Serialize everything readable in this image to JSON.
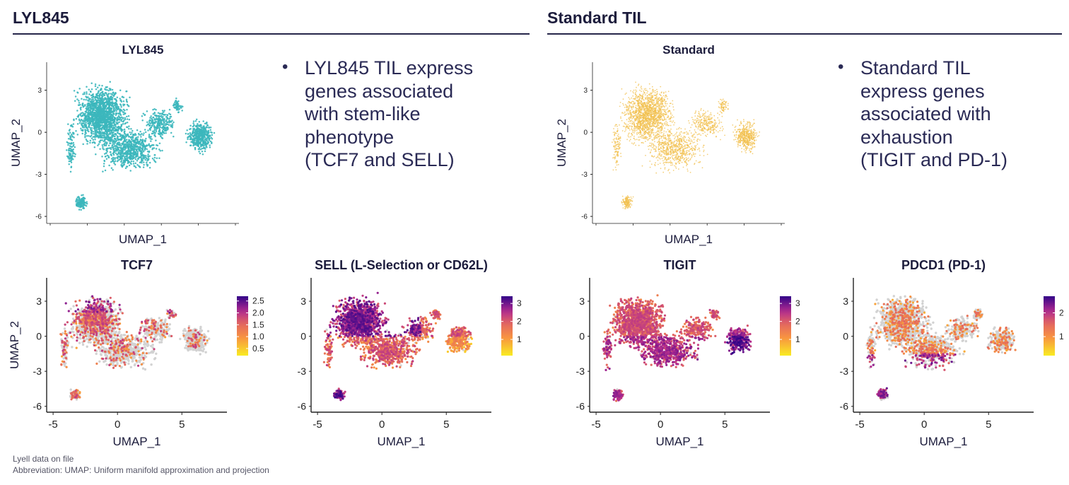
{
  "sections": {
    "left_title": "LYL845",
    "right_title": "Standard TIL"
  },
  "bullets": {
    "left": [
      "LYL845 TIL express",
      "genes associated",
      "with stem-like",
      "phenotype",
      "(TCF7 and SELL)"
    ],
    "right": [
      "Standard TIL",
      "express genes",
      "associated with",
      "exhaustion",
      "(TIGIT and PD-1)"
    ],
    "marker": "•"
  },
  "footnotes": {
    "line1": "Lyell data on file",
    "line2": "Abbreviation: UMAP: Uniform manifold approximation and projection"
  },
  "colors": {
    "teal": "#3cb7bd",
    "gold": "#f1c04f",
    "gray": "#d2d2d2",
    "rule": "#26264a",
    "text": "#1f1f3a"
  },
  "chart_data": [
    {
      "id": "lyl845",
      "type": "scatter",
      "title": "LYL845",
      "xlabel": "UMAP_1",
      "ylabel": "UMAP_2",
      "xlim": [
        -6,
        9
      ],
      "ylim": [
        -6.5,
        5
      ],
      "yticks": [
        3,
        0,
        -3,
        -6
      ],
      "xticks": [],
      "color": "#3cb7bd",
      "mode": "solid"
    },
    {
      "id": "standard",
      "type": "scatter",
      "title": "Standard",
      "xlabel": "UMAP_1",
      "ylabel": "UMAP_2",
      "xlim": [
        -6,
        9
      ],
      "ylim": [
        -6.5,
        5
      ],
      "yticks": [
        3,
        0,
        -3,
        -6
      ],
      "xticks": [],
      "color": "#f1c04f",
      "mode": "sparse"
    },
    {
      "id": "tcf7",
      "type": "scatter",
      "title": "TCF7",
      "xlabel": "UMAP_1",
      "ylabel": "UMAP_2",
      "xlim": [
        -5.5,
        8.5
      ],
      "ylim": [
        -6.5,
        5
      ],
      "yticks": [
        3,
        0,
        -3,
        -6
      ],
      "xticks": [
        -5,
        0,
        5
      ],
      "mode": "expression",
      "pattern": "tcf7",
      "colorbar": {
        "min": 0.2,
        "max": 2.7,
        "ticks": [
          2.5,
          2.0,
          1.5,
          1.0,
          0.5
        ]
      }
    },
    {
      "id": "sell",
      "type": "scatter",
      "title": "SELL (L-Selection or CD62L)",
      "xlabel": "UMAP_1",
      "ylabel": "",
      "xlim": [
        -5.5,
        8.5
      ],
      "ylim": [
        -6.5,
        5
      ],
      "yticks": [
        3,
        0,
        -3,
        -6
      ],
      "xticks": [
        -5,
        0,
        5
      ],
      "mode": "expression",
      "pattern": "sell",
      "colorbar": {
        "min": 0.1,
        "max": 3.4,
        "ticks": [
          3,
          2,
          1
        ]
      }
    },
    {
      "id": "tigit",
      "type": "scatter",
      "title": "TIGIT",
      "xlabel": "UMAP_1",
      "ylabel": "",
      "xlim": [
        -5.5,
        8.5
      ],
      "ylim": [
        -6.5,
        5
      ],
      "yticks": [
        3,
        0,
        -3,
        -6
      ],
      "xticks": [
        -5,
        0,
        5
      ],
      "mode": "expression",
      "pattern": "tigit",
      "colorbar": {
        "min": 0.1,
        "max": 3.4,
        "ticks": [
          3,
          2,
          1
        ]
      }
    },
    {
      "id": "pdcd1",
      "type": "scatter",
      "title": "PDCD1 (PD-1)",
      "xlabel": "UMAP_1",
      "ylabel": "",
      "xlim": [
        -5.5,
        8.5
      ],
      "ylim": [
        -6.5,
        5
      ],
      "yticks": [
        3,
        0,
        -3,
        -6
      ],
      "xticks": [
        -5,
        0,
        5
      ],
      "mode": "expression",
      "pattern": "pdcd1",
      "colorbar": {
        "min": 0.2,
        "max": 2.7,
        "ticks": [
          2,
          1
        ]
      }
    }
  ]
}
